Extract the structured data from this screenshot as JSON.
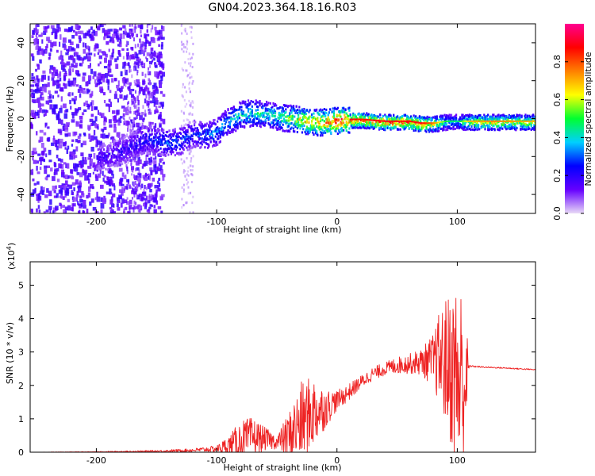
{
  "title": "GN04.2023.364.18.16.R03",
  "chart_data": [
    {
      "type": "heatmap",
      "xlabel": "Height of straight line (km)",
      "ylabel": "Frequency (Hz)",
      "xlim": [
        -255,
        165
      ],
      "ylim": [
        -50,
        50
      ],
      "x_ticks": [
        -200,
        -100,
        0,
        100
      ],
      "x_tick_labels": [
        "-200",
        "-100",
        "0",
        "100"
      ],
      "y_ticks": [
        -40,
        -20,
        0,
        20,
        40
      ],
      "y_tick_labels": [
        "-40",
        "-20",
        "0",
        "20",
        "40"
      ],
      "colorbar": {
        "label": "Normalized spectral amplitude",
        "range": [
          0,
          1
        ],
        "ticks": [
          0.0,
          0.2,
          0.4,
          0.6,
          0.8
        ],
        "tick_labels": [
          "0.0",
          "0.2",
          "0.4",
          "0.6",
          "0.8"
        ],
        "colors": [
          "#e8d9f6",
          "#6600ff",
          "#0000ff",
          "#00d0ff",
          "#00ff30",
          "#ffff00",
          "#ff8000",
          "#ff0000",
          "#ff0090"
        ]
      },
      "ridge": {
        "x": [
          -190,
          -175,
          -160,
          -150,
          -140,
          -130,
          -120,
          -110,
          -100,
          -90,
          -80,
          -70,
          -60,
          -50,
          -40,
          -30,
          -20,
          -10,
          0,
          10,
          20,
          40,
          60,
          70,
          80,
          90,
          100,
          110,
          130,
          165
        ],
        "y": [
          -20,
          -16,
          -11,
          -12,
          -13,
          -12,
          -8,
          -9,
          -7,
          -1,
          2,
          3,
          2,
          1,
          0,
          -1,
          -2,
          -2,
          -1,
          -1,
          -1,
          -2,
          -2,
          -3,
          -3,
          -2,
          -2,
          -2,
          -2,
          -2
        ],
        "amplitude": [
          0.18,
          0.22,
          0.25,
          0.28,
          0.3,
          0.3,
          0.25,
          0.32,
          0.35,
          0.4,
          0.42,
          0.45,
          0.45,
          0.45,
          0.55,
          0.65,
          0.7,
          0.75,
          0.85,
          0.8,
          0.75,
          0.8,
          0.78,
          0.8,
          0.65,
          0.4,
          0.35,
          0.6,
          0.65,
          0.6
        ]
      }
    },
    {
      "type": "line",
      "xlabel": "Height of straight line (km)",
      "ylabel": "SNR (10 * v/v)",
      "y_multiplier": "(x10",
      "y_multiplier_exp": "4",
      "y_multiplier_close": ")",
      "color": "#ee2222",
      "xlim": [
        -255,
        165
      ],
      "ylim": [
        0,
        5.7
      ],
      "x_ticks": [
        -200,
        -100,
        0,
        100
      ],
      "x_tick_labels": [
        "-200",
        "-100",
        "0",
        "100"
      ],
      "y_ticks": [
        0,
        1,
        2,
        3,
        4,
        5
      ],
      "y_tick_labels": [
        "0",
        "1",
        "2",
        "3",
        "4",
        "5"
      ],
      "series": [
        {
          "x": [
            -255,
            -200,
            -150,
            -120,
            -100,
            -90,
            -80,
            -70,
            -60,
            -50,
            -40,
            -30,
            -20,
            -10,
            0,
            10,
            20,
            30,
            40,
            50,
            60,
            70,
            80,
            85,
            90,
            95,
            100,
            103,
            106,
            110,
            120,
            140,
            165
          ],
          "y": [
            0.0,
            0.01,
            0.03,
            0.06,
            0.1,
            0.2,
            0.35,
            0.45,
            0.4,
            0.3,
            0.5,
            0.9,
            1.2,
            1.3,
            1.55,
            1.8,
            2.1,
            2.35,
            2.5,
            2.6,
            2.65,
            2.7,
            2.75,
            2.8,
            2.7,
            2.5,
            2.2,
            2.0,
            2.1,
            2.58,
            2.55,
            2.52,
            2.47
          ],
          "noise_amplitude": [
            0.0,
            0.01,
            0.03,
            0.05,
            0.1,
            0.3,
            0.6,
            0.6,
            0.35,
            0.2,
            0.7,
            1.2,
            1.1,
            0.6,
            0.3,
            0.25,
            0.2,
            0.2,
            0.2,
            0.25,
            0.3,
            0.4,
            0.8,
            1.4,
            1.9,
            2.4,
            3.0,
            3.2,
            2.6,
            0.03,
            0.02,
            0.02,
            0.02
          ]
        }
      ]
    }
  ]
}
